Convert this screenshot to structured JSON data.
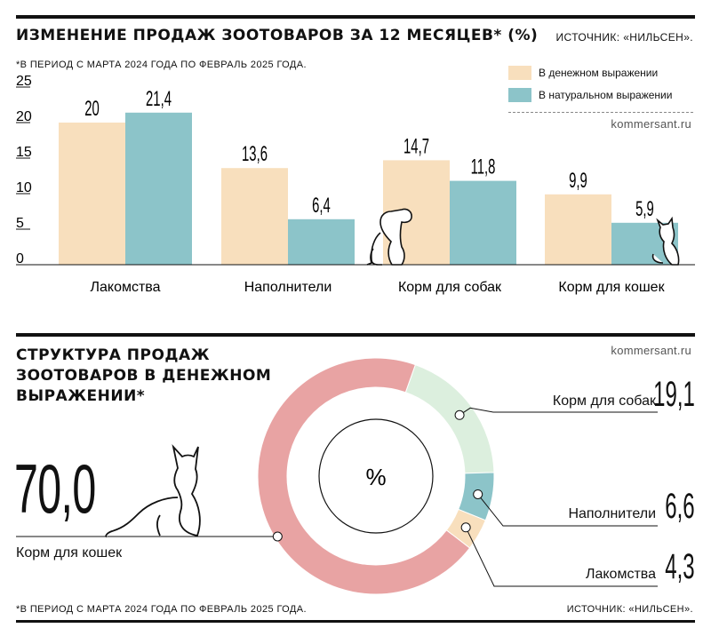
{
  "colors": {
    "money": "#f8dfbd",
    "natural": "#8cc4c9",
    "pie_cats": "#e8a3a3",
    "pie_dogs": "#dcefde",
    "pie_fillers": "#8cc4c9",
    "pie_treats": "#f8dfbd"
  },
  "bar_section": {
    "title": "ИЗМЕНЕНИЕ ПРОДАЖ ЗООТОВАРОВ ЗА 12 МЕСЯЦЕВ* (%)",
    "source": "ИСТОЧНИК: «НИЛЬСЕН».",
    "footnote": "*В ПЕРИОД С МАРТА 2024 ГОДА ПО ФЕВРАЛЬ 2025 ГОДА.",
    "site": "kommersant.ru"
  },
  "pie_section": {
    "title_lines": [
      "СТРУКТУРА ПРОДАЖ",
      "ЗООТОВАРОВ В ДЕНЕЖНОМ",
      "ВЫРАЖЕНИИ*"
    ],
    "site": "kommersant.ru",
    "center_label": "%",
    "footnote": "*В ПЕРИОД С МАРТА 2024 ГОДА ПО ФЕВРАЛЬ 2025 ГОДА.",
    "source": "ИСТОЧНИК: «НИЛЬСЕН»."
  },
  "icons": {
    "dog": "dog-silhouette-icon",
    "small_cat": "cat-silhouette-icon",
    "big_cat": "cat-outline-icon"
  },
  "chart_data": [
    {
      "type": "bar",
      "title": "ИЗМЕНЕНИЕ ПРОДАЖ ЗООТОВАРОВ ЗА 12 МЕСЯЦЕВ* (%)",
      "categories": [
        "Лакомства",
        "Наполнители",
        "Корм для собак",
        "Корм для кошек"
      ],
      "series": [
        {
          "name": "В денежном выражении",
          "values": [
            20,
            13.6,
            14.7,
            9.9
          ],
          "labels": [
            "20",
            "13,6",
            "14,7",
            "9,9"
          ]
        },
        {
          "name": "В натуральном выражении",
          "values": [
            21.4,
            6.4,
            11.8,
            5.9
          ],
          "labels": [
            "21,4",
            "6,4",
            "11,8",
            "5,9"
          ]
        }
      ],
      "yticks": [
        "0",
        "5",
        "10",
        "15",
        "20",
        "25"
      ],
      "ylim": [
        0,
        25
      ],
      "legend_position": "top-right",
      "grid": false
    },
    {
      "type": "pie",
      "title": "СТРУКТУРА ПРОДАЖ ЗООТОВАРОВ В ДЕНЕЖНОМ ВЫРАЖЕНИИ*",
      "slices": [
        {
          "name": "Корм для кошек",
          "value": 70.0,
          "label": "70,0"
        },
        {
          "name": "Корм для собак",
          "value": 19.1,
          "label": "19,1"
        },
        {
          "name": "Наполнители",
          "value": 6.6,
          "label": "6,6"
        },
        {
          "name": "Лакомства",
          "value": 4.3,
          "label": "4,3"
        }
      ]
    }
  ]
}
